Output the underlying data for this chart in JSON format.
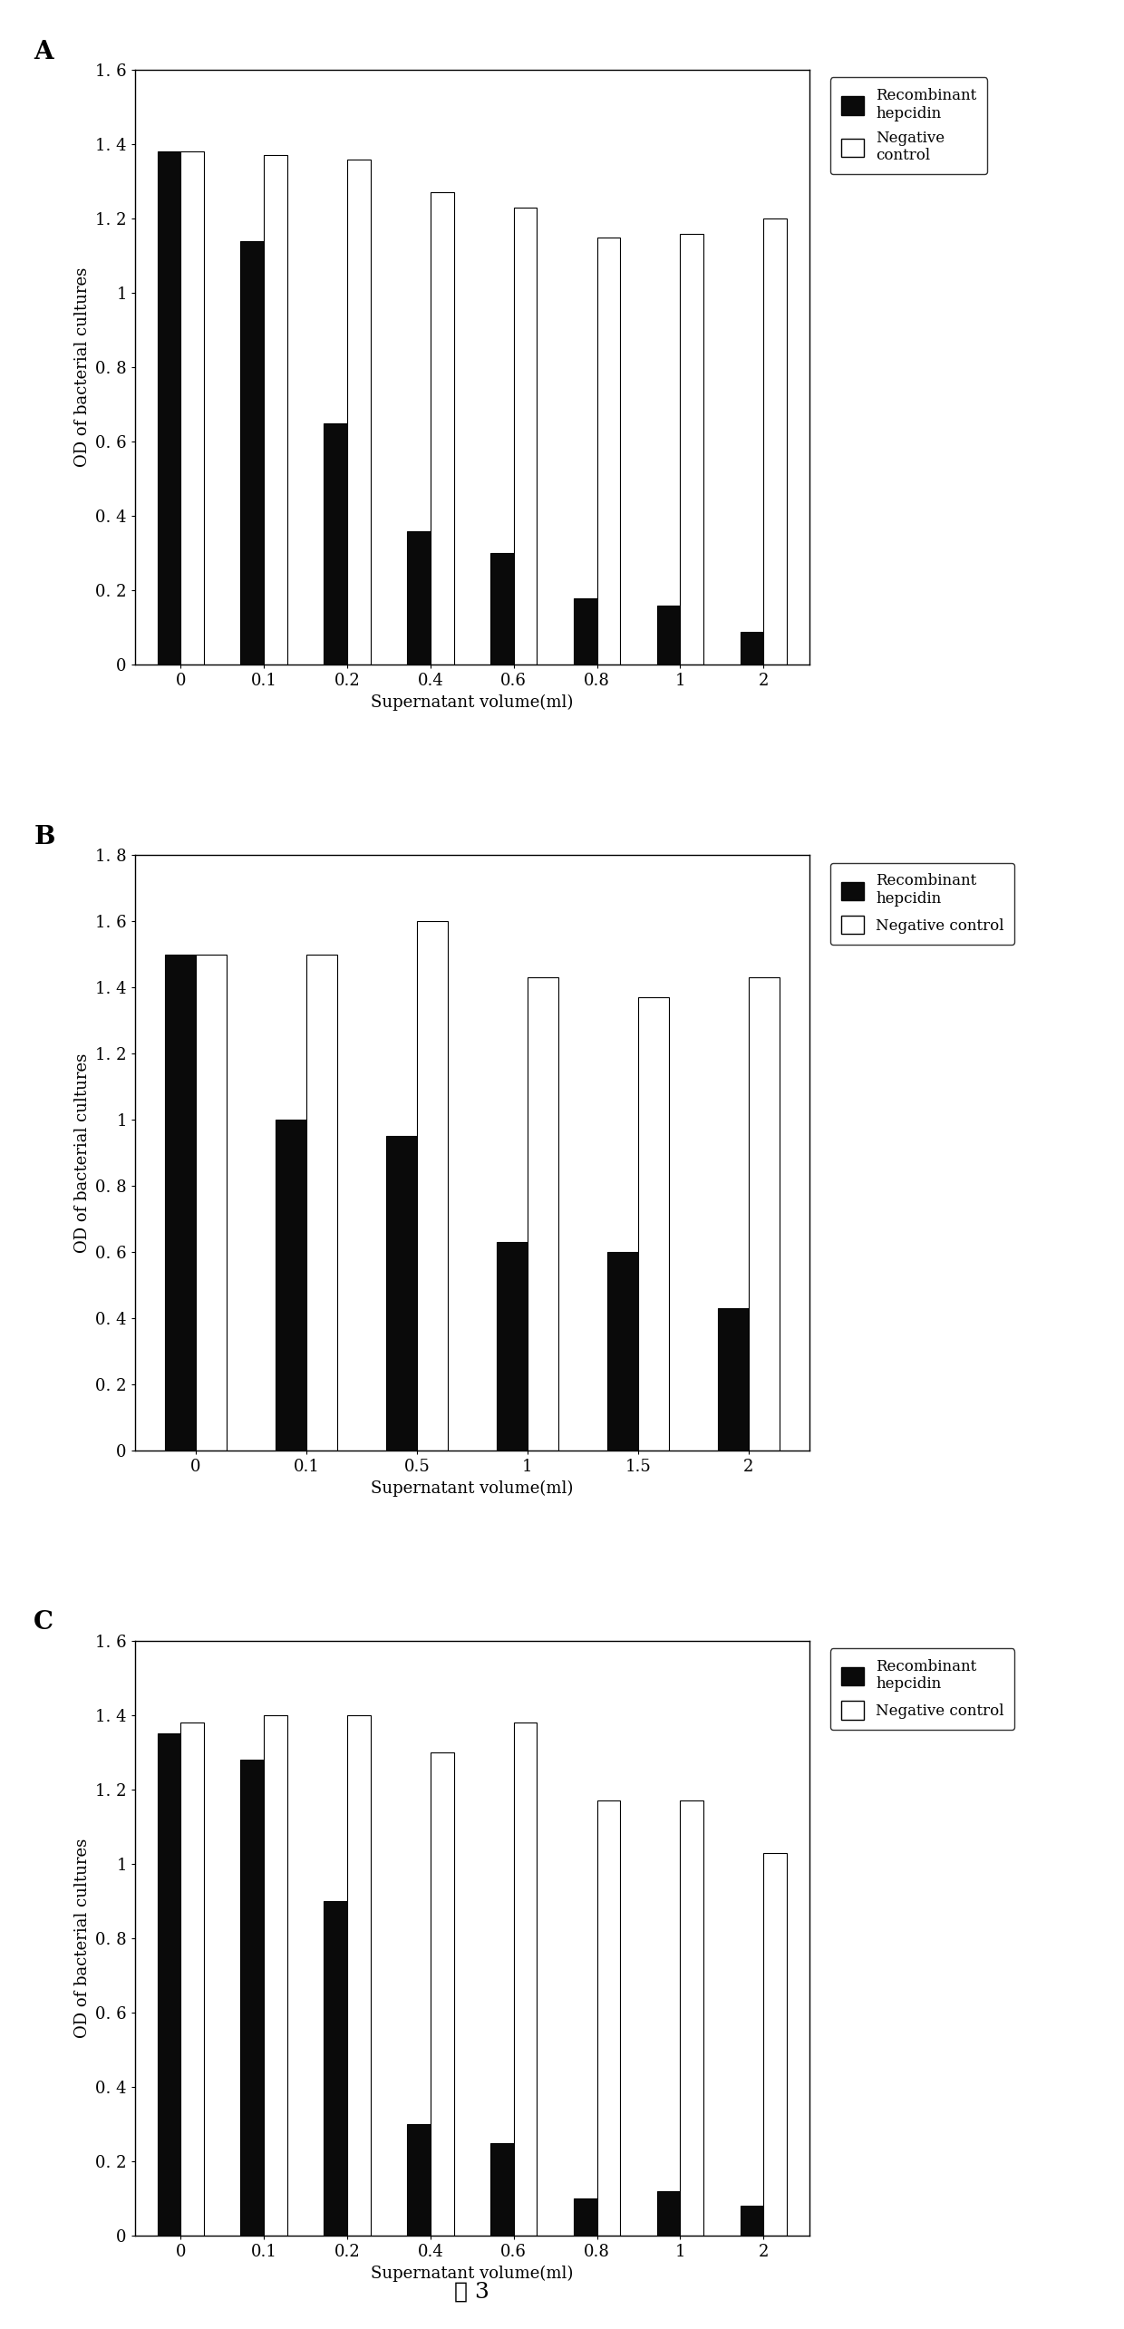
{
  "chart_A": {
    "label": "A",
    "categories": [
      "0",
      "0.1",
      "0.2",
      "0.4",
      "0.6",
      "0.8",
      "1",
      "2"
    ],
    "recombinant": [
      1.38,
      1.14,
      0.65,
      0.36,
      0.3,
      0.18,
      0.16,
      0.09
    ],
    "negative": [
      1.38,
      1.37,
      1.36,
      1.27,
      1.23,
      1.15,
      1.16,
      1.2
    ],
    "ylim": [
      0,
      1.6
    ],
    "yticks": [
      0,
      0.2,
      0.4,
      0.6,
      0.8,
      1.0,
      1.2,
      1.4,
      1.6
    ],
    "ytick_labels": [
      "0",
      "0. 2",
      "0. 4",
      "0. 6",
      "0. 8",
      "1",
      "1. 2",
      "1. 4",
      "1. 6"
    ],
    "ylabel": "OD of bacterial cultures",
    "xlabel": "Supernatant volume(ml)",
    "legend_rec": "Recombinant\nhepcidin",
    "legend_neg": "Negative\ncontrol"
  },
  "chart_B": {
    "label": "B",
    "categories": [
      "0",
      "0.1",
      "0.5",
      "1",
      "1.5",
      "2"
    ],
    "recombinant": [
      1.5,
      1.0,
      0.95,
      0.63,
      0.6,
      0.43
    ],
    "negative": [
      1.5,
      1.5,
      1.6,
      1.43,
      1.37,
      1.43
    ],
    "ylim": [
      0,
      1.8
    ],
    "yticks": [
      0,
      0.2,
      0.4,
      0.6,
      0.8,
      1.0,
      1.2,
      1.4,
      1.6,
      1.8
    ],
    "ytick_labels": [
      "0",
      "0. 2",
      "0. 4",
      "0. 6",
      "0. 8",
      "1",
      "1. 2",
      "1. 4",
      "1. 6",
      "1. 8"
    ],
    "ylabel": "OD of bacterial cultures",
    "xlabel": "Supernatant volume(ml)",
    "legend_rec": "Recombinant\nhepcidin",
    "legend_neg": "Negative control"
  },
  "chart_C": {
    "label": "C",
    "categories": [
      "0",
      "0.1",
      "0.2",
      "0.4",
      "0.6",
      "0.8",
      "1",
      "2"
    ],
    "recombinant": [
      1.35,
      1.28,
      0.9,
      0.3,
      0.25,
      0.1,
      0.12,
      0.08
    ],
    "negative": [
      1.38,
      1.4,
      1.4,
      1.3,
      1.38,
      1.17,
      1.17,
      1.03
    ],
    "ylim": [
      0,
      1.6
    ],
    "yticks": [
      0,
      0.2,
      0.4,
      0.6,
      0.8,
      1.0,
      1.2,
      1.4,
      1.6
    ],
    "ytick_labels": [
      "0",
      "0. 2",
      "0. 4",
      "0. 6",
      "0. 8",
      "1",
      "1. 2",
      "1. 4",
      "1. 6"
    ],
    "ylabel": "OD of bacterial cultures",
    "xlabel": "Supernatant volume(ml)",
    "legend_rec": "Recombinant\nhepcidin",
    "legend_neg": "Negative control"
  },
  "figure_label": "图 3",
  "bar_width": 0.28,
  "recombinant_color": "#0a0a0a",
  "negative_color": "#ffffff",
  "bar_edge_color": "#000000"
}
